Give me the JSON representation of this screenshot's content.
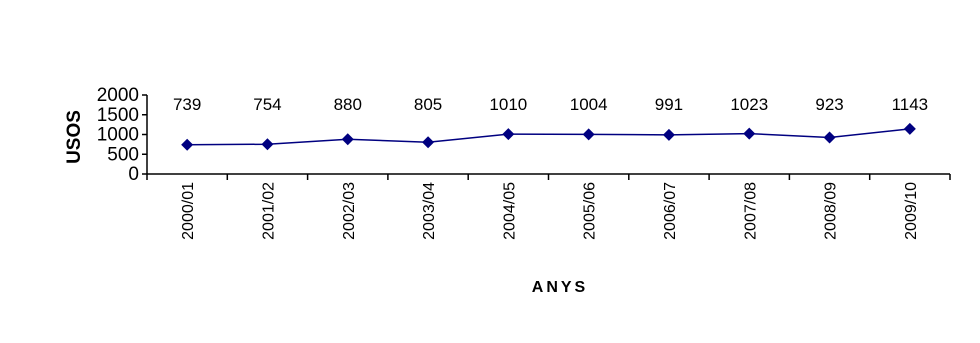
{
  "chart_data": {
    "type": "line",
    "categories": [
      "2000/01",
      "2001/02",
      "2002/03",
      "2003/04",
      "2004/05",
      "2005/06",
      "2006/07",
      "2007/08",
      "2008/09",
      "2009/10"
    ],
    "values": [
      739,
      754,
      880,
      805,
      1010,
      1004,
      991,
      1023,
      923,
      1143
    ],
    "data_labels": [
      "739",
      "754",
      "880",
      "805",
      "1010",
      "1004",
      "991",
      "1023",
      "923",
      "1143"
    ],
    "title": "",
    "xlabel": "ANYS",
    "ylabel": "USOS",
    "ylim": [
      0,
      2000
    ],
    "yticks": [
      0,
      500,
      1000,
      1500,
      2000
    ],
    "grid": false,
    "legend": "none",
    "colors": {
      "line": "#000080",
      "marker": "#000080",
      "axis": "#000000"
    }
  }
}
